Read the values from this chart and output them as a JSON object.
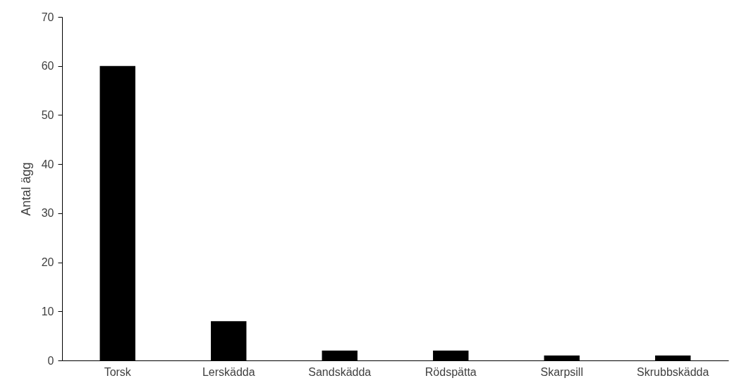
{
  "chart_data": {
    "type": "bar",
    "ylabel": "Antal ägg",
    "categories": [
      "Torsk",
      "Lerskädda",
      "Sandskädda",
      "Rödspätta",
      "Skarpsill",
      "Skrubbskädda"
    ],
    "values": [
      60,
      8,
      2,
      2,
      1,
      1
    ],
    "color": "#000000",
    "ylim": [
      0,
      70
    ],
    "yticks": [
      0,
      10,
      20,
      30,
      40,
      50,
      60,
      70
    ],
    "grid": false
  }
}
